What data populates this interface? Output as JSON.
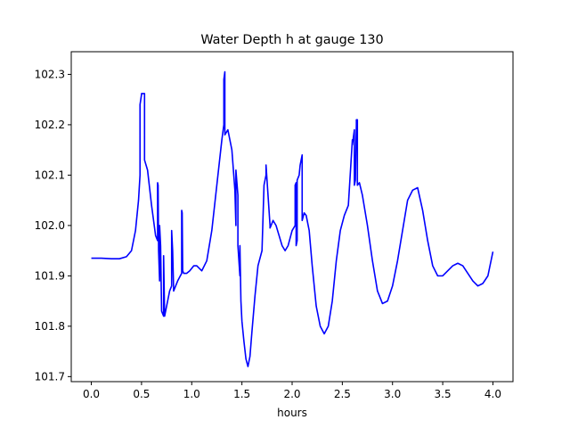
{
  "chart_data": {
    "type": "line",
    "title": "Water Depth h at gauge 130",
    "xlabel": "hours",
    "ylabel": "",
    "xlim": [
      -0.2,
      4.2
    ],
    "ylim": [
      101.69,
      102.345
    ],
    "xticks": [
      0.0,
      0.5,
      1.0,
      1.5,
      2.0,
      2.5,
      3.0,
      3.5,
      4.0
    ],
    "xtick_labels": [
      "0.0",
      "0.5",
      "1.0",
      "1.5",
      "2.0",
      "2.5",
      "3.0",
      "3.5",
      "4.0"
    ],
    "yticks": [
      101.7,
      101.8,
      101.9,
      102.0,
      102.1,
      102.2,
      102.3
    ],
    "ytick_labels": [
      "101.7",
      "101.8",
      "101.9",
      "102.0",
      "102.1",
      "102.2",
      "102.3"
    ],
    "grid": false,
    "legend": "none",
    "series": [
      {
        "color": "#0000ff",
        "x": [
          0.0,
          0.1,
          0.2,
          0.28,
          0.35,
          0.4,
          0.44,
          0.47,
          0.485,
          0.485,
          0.5,
          0.5,
          0.53,
          0.53,
          0.56,
          0.6,
          0.64,
          0.66,
          0.66,
          0.665,
          0.67,
          0.68,
          0.68,
          0.69,
          0.7,
          0.72,
          0.72,
          0.73,
          0.74,
          0.76,
          0.78,
          0.8,
          0.8,
          0.81,
          0.82,
          0.86,
          0.9,
          0.9,
          0.905,
          0.91,
          0.92,
          0.95,
          0.98,
          1.02,
          1.05,
          1.1,
          1.15,
          1.2,
          1.25,
          1.3,
          1.32,
          1.32,
          1.33,
          1.33,
          1.36,
          1.4,
          1.43,
          1.44,
          1.44,
          1.46,
          1.46,
          1.48,
          1.48,
          1.49,
          1.5,
          1.52,
          1.54,
          1.56,
          1.58,
          1.6,
          1.63,
          1.66,
          1.7,
          1.72,
          1.74,
          1.74,
          1.78,
          1.78,
          1.79,
          1.81,
          1.84,
          1.87,
          1.9,
          1.93,
          1.96,
          2.0,
          2.03,
          2.03,
          2.04,
          2.04,
          2.05,
          2.05,
          2.07,
          2.08,
          2.1,
          2.1,
          2.12,
          2.14,
          2.17,
          2.2,
          2.24,
          2.28,
          2.32,
          2.36,
          2.4,
          2.44,
          2.48,
          2.52,
          2.56,
          2.6,
          2.6,
          2.62,
          2.62,
          2.63,
          2.64,
          2.64,
          2.65,
          2.65,
          2.67,
          2.7,
          2.75,
          2.8,
          2.85,
          2.9,
          2.95,
          3.0,
          3.05,
          3.1,
          3.15,
          3.2,
          3.25,
          3.3,
          3.35,
          3.4,
          3.45,
          3.5,
          3.55,
          3.6,
          3.65,
          3.7,
          3.75,
          3.8,
          3.85,
          3.9,
          3.95,
          4.0
        ],
        "y": [
          101.935,
          101.935,
          101.934,
          101.934,
          101.938,
          101.95,
          101.99,
          102.05,
          102.1,
          102.24,
          102.26,
          102.262,
          102.262,
          102.13,
          102.11,
          102.04,
          101.98,
          101.97,
          102.085,
          102.08,
          101.95,
          101.89,
          102.0,
          101.96,
          101.83,
          101.82,
          101.94,
          101.82,
          101.83,
          101.85,
          101.87,
          101.88,
          101.99,
          101.95,
          101.87,
          101.89,
          101.905,
          102.03,
          102.025,
          101.91,
          101.905,
          101.905,
          101.91,
          101.92,
          101.92,
          101.91,
          101.93,
          101.99,
          102.08,
          102.17,
          102.2,
          102.29,
          102.305,
          102.18,
          102.19,
          102.15,
          102.07,
          102.0,
          102.11,
          102.06,
          101.96,
          101.9,
          101.96,
          101.85,
          101.81,
          101.77,
          101.735,
          101.72,
          101.74,
          101.79,
          101.86,
          101.92,
          101.95,
          102.08,
          102.1,
          102.12,
          102.0,
          101.995,
          102.0,
          102.01,
          102.0,
          101.98,
          101.96,
          101.95,
          101.96,
          101.99,
          102.0,
          102.08,
          102.085,
          101.96,
          101.97,
          102.09,
          102.1,
          102.12,
          102.14,
          102.01,
          102.025,
          102.02,
          101.99,
          101.92,
          101.84,
          101.8,
          101.785,
          101.8,
          101.85,
          101.93,
          101.99,
          102.02,
          102.04,
          102.17,
          102.16,
          102.19,
          102.08,
          102.09,
          102.2,
          102.21,
          102.21,
          102.08,
          102.085,
          102.06,
          102.0,
          101.93,
          101.87,
          101.845,
          101.85,
          101.88,
          101.93,
          101.99,
          102.05,
          102.07,
          102.075,
          102.03,
          101.97,
          101.92,
          101.9,
          101.9,
          101.91,
          101.92,
          101.925,
          101.92,
          101.905,
          101.89,
          101.88,
          101.885,
          101.9,
          101.948
        ]
      }
    ]
  }
}
